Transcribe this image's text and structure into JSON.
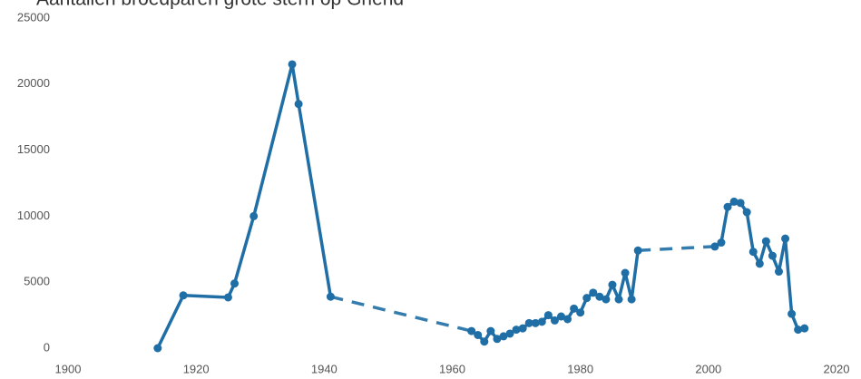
{
  "chart_data": {
    "type": "line",
    "title": "Aantallen broedparen grote stern op Griend",
    "x": [
      1914,
      1918,
      1925,
      1926,
      1929,
      1935,
      1936,
      1941,
      1950,
      1963,
      1964,
      1965,
      1966,
      1967,
      1968,
      1969,
      1970,
      1971,
      1972,
      1973,
      1974,
      1975,
      1976,
      1977,
      1978,
      1979,
      1980,
      1981,
      1982,
      1983,
      1984,
      1985,
      1986,
      1987,
      1988,
      1989,
      1995,
      2001,
      2002,
      2003,
      2004,
      2005,
      2006,
      2007,
      2008,
      2009,
      2010,
      2011,
      2012,
      2013,
      2014,
      2015
    ],
    "series": [
      {
        "name": "Broedparen",
        "color": "#1f6ea6",
        "values": [
          0,
          4000,
          3850,
          4900,
          10000,
          21500,
          18500,
          3900,
          null,
          1300,
          1000,
          500,
          1300,
          700,
          900,
          1100,
          1400,
          1500,
          1900,
          1900,
          2000,
          2500,
          2100,
          2400,
          2200,
          3000,
          2700,
          3800,
          4200,
          3900,
          3700,
          4800,
          3700,
          5700,
          3700,
          7400,
          null,
          7700,
          8000,
          10700,
          11100,
          11000,
          10300,
          7300,
          6400,
          8100,
          7000,
          5800,
          8300,
          2600,
          1400,
          1500
        ]
      }
    ],
    "xlim": [
      1900,
      2020
    ],
    "xticks": [
      1900,
      1920,
      1940,
      1960,
      1980,
      2000,
      2020
    ],
    "ylim": [
      0,
      25000
    ],
    "yticks": [
      0,
      5000,
      10000,
      15000,
      20000,
      25000
    ],
    "grid": false
  }
}
